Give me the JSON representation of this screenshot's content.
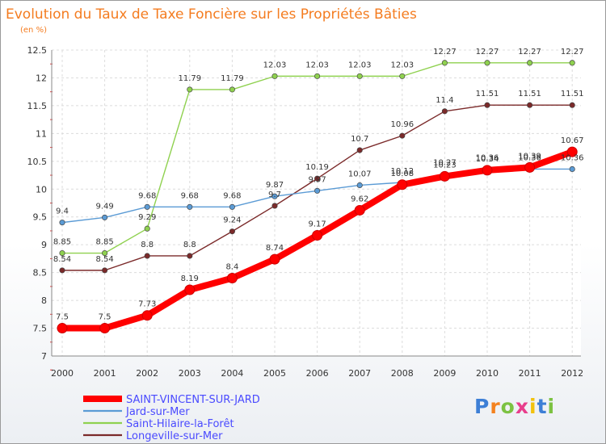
{
  "chart_data": {
    "type": "line",
    "title": "Evolution du Taux de Taxe Foncière sur les Propriétés Bâties",
    "subtitle": "(en %)",
    "x": [
      "2000",
      "2001",
      "2002",
      "2003",
      "2004",
      "2005",
      "2006",
      "2007",
      "2008",
      "2009",
      "2010",
      "2011",
      "2012"
    ],
    "ylim": [
      7,
      12.5
    ],
    "yticks": [
      "7",
      "7.5",
      "8",
      "8.5",
      "9",
      "9.5",
      "10",
      "10.5",
      "11",
      "11.5",
      "12",
      "12.5"
    ],
    "grid": true,
    "legend_position": "bottom-left",
    "series": [
      {
        "name": "SAINT-VINCENT-SUR-JARD",
        "color": "#ff0000",
        "values": [
          7.5,
          7.5,
          7.73,
          8.19,
          8.4,
          8.74,
          9.17,
          9.62,
          10.08,
          10.23,
          10.34,
          10.39,
          10.67
        ],
        "labels": [
          "7.5",
          "7.5",
          "7.73",
          "8.19",
          "8.4",
          "8.74",
          "9.17",
          "9.62",
          "10.08",
          "10.23",
          "10.34",
          "10.39",
          "10.67"
        ]
      },
      {
        "name": "Jard-sur-Mer",
        "color": "#5b9bd5",
        "values": [
          9.4,
          9.49,
          9.68,
          9.68,
          9.68,
          9.87,
          9.97,
          10.07,
          10.12,
          10.27,
          10.36,
          10.36,
          10.36
        ],
        "labels": [
          "9.4",
          "9.49",
          "9.68",
          "9.68",
          "9.68",
          "9.87",
          "9.97",
          "10.07",
          "10.12",
          "10.27",
          "10.36",
          "10.36",
          "10.36"
        ]
      },
      {
        "name": "Saint-Hilaire-la-Forêt",
        "color": "#8fd14f",
        "values": [
          8.85,
          8.85,
          9.29,
          11.79,
          11.79,
          12.03,
          12.03,
          12.03,
          12.03,
          12.27,
          12.27,
          12.27,
          12.27
        ],
        "labels": [
          "8.85",
          "8.85",
          "9.29",
          "11.79",
          "11.79",
          "12.03",
          "12.03",
          "12.03",
          "12.03",
          "12.27",
          "12.27",
          "12.27",
          "12.27"
        ]
      },
      {
        "name": "Longeville-sur-Mer",
        "color": "#7b2a2a",
        "values": [
          8.54,
          8.54,
          8.8,
          8.8,
          9.24,
          9.7,
          10.19,
          10.7,
          10.96,
          11.4,
          11.51,
          11.51,
          11.51
        ],
        "labels": [
          "8.54",
          "8.54",
          "8.8",
          "8.8",
          "9.24",
          "9.7",
          "10.19",
          "10.7",
          "10.96",
          "11.4",
          "11.51",
          "11.51",
          "11.51"
        ]
      }
    ]
  },
  "logo": {
    "letters": [
      "P",
      "r",
      "o",
      "x",
      "i",
      "t",
      "i"
    ],
    "colors": [
      "#3d7fd6",
      "#f4821f",
      "#7cc242",
      "#e83e8c",
      "#f2c20e",
      "#3d7fd6",
      "#7cc242"
    ]
  }
}
